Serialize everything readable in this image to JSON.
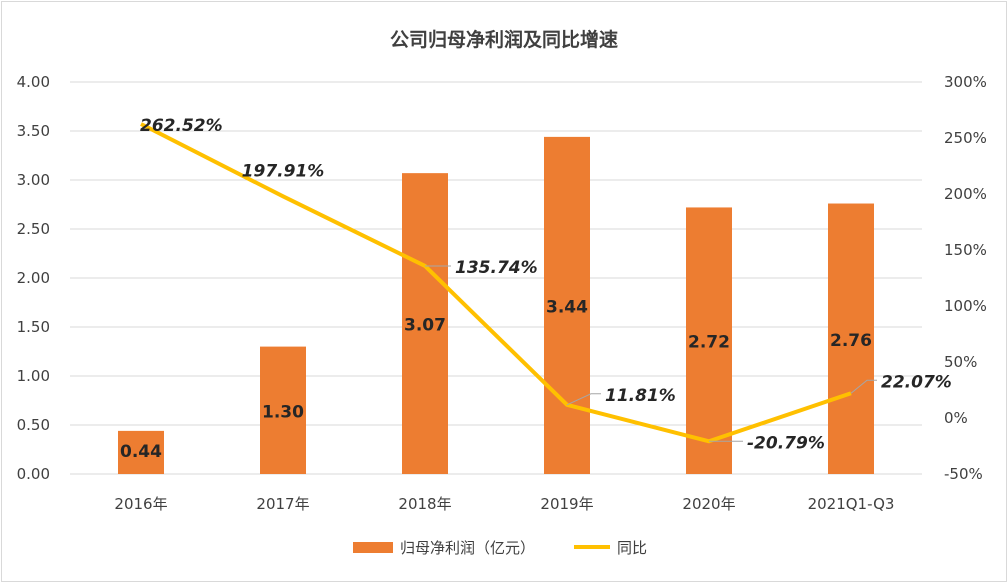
{
  "chart_data": {
    "type": "bar",
    "title": "公司归母净利润及同比增速",
    "categories": [
      "2016年",
      "2017年",
      "2018年",
      "2019年",
      "2020年",
      "2021Q1-Q3"
    ],
    "series": [
      {
        "name": "归母净利润（亿元）",
        "type": "bar",
        "axis": "left",
        "color": "#ED7D31",
        "values": [
          0.44,
          1.3,
          3.07,
          3.44,
          2.72,
          2.76
        ],
        "labels": [
          "0.44",
          "1.30",
          "3.07",
          "3.44",
          "2.72",
          "2.76"
        ]
      },
      {
        "name": "同比",
        "type": "line",
        "axis": "right",
        "color": "#FFC000",
        "values": [
          262.52,
          197.91,
          135.74,
          11.81,
          -20.79,
          22.07
        ],
        "labels": [
          "262.52%",
          "197.91%",
          "135.74%",
          "11.81%",
          "-20.79%",
          "22.07%"
        ]
      }
    ],
    "y_left": {
      "min": 0,
      "max": 4,
      "ticks": [
        "4.00",
        "3.50",
        "3.00",
        "2.50",
        "2.00",
        "1.50",
        "1.00",
        "0.50",
        "0.00"
      ]
    },
    "y_right": {
      "min": -50,
      "max": 300,
      "ticks": [
        "300%",
        "250%",
        "200%",
        "150%",
        "100%",
        "50%",
        "0%",
        "-50%"
      ]
    },
    "grid": true,
    "legend_position": "bottom"
  }
}
